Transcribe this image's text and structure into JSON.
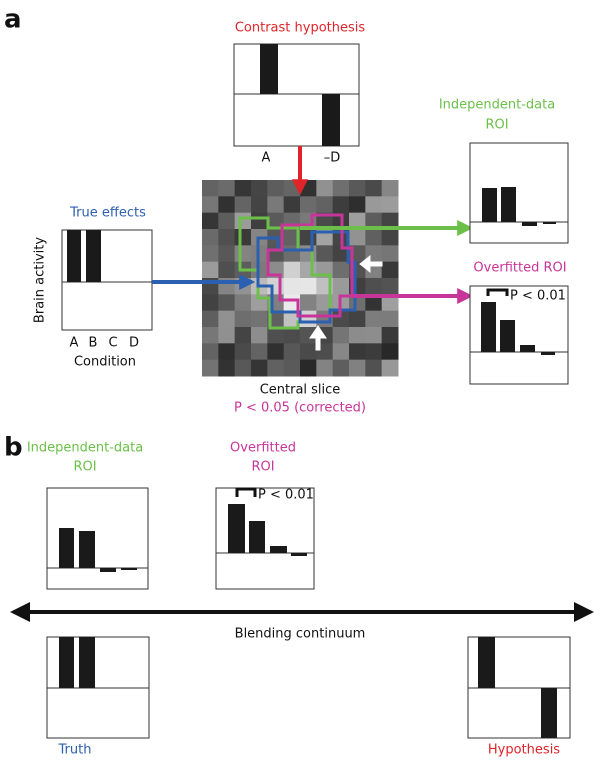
{
  "panel_a": {
    "label": "a",
    "contrast_hypothesis": {
      "title": "Contrast hypothesis",
      "labels": [
        "A",
        "–D"
      ]
    },
    "true_effects": {
      "title": "True effects",
      "y_label": "Brain activity",
      "conditions": [
        "A",
        "B",
        "C",
        "D"
      ],
      "x_label": "Condition"
    },
    "independent_roi": {
      "title": [
        "Independent-data",
        "ROI"
      ]
    },
    "overfitted_roi": {
      "title": "Overfitted ROI",
      "significance": "P < 0.01"
    },
    "central_slice": {
      "caption": "Central slice",
      "threshold": "P < 0.05 (corrected)"
    }
  },
  "panel_b": {
    "label": "b",
    "independent_roi": {
      "title": [
        "Independent-data",
        "ROI"
      ]
    },
    "overfitted_roi": {
      "title": [
        "Overfitted",
        "ROI"
      ],
      "significance": "P < 0.01"
    },
    "continuum": "Blending continuum",
    "truth": "Truth",
    "hypothesis": "Hypothesis"
  }
}
